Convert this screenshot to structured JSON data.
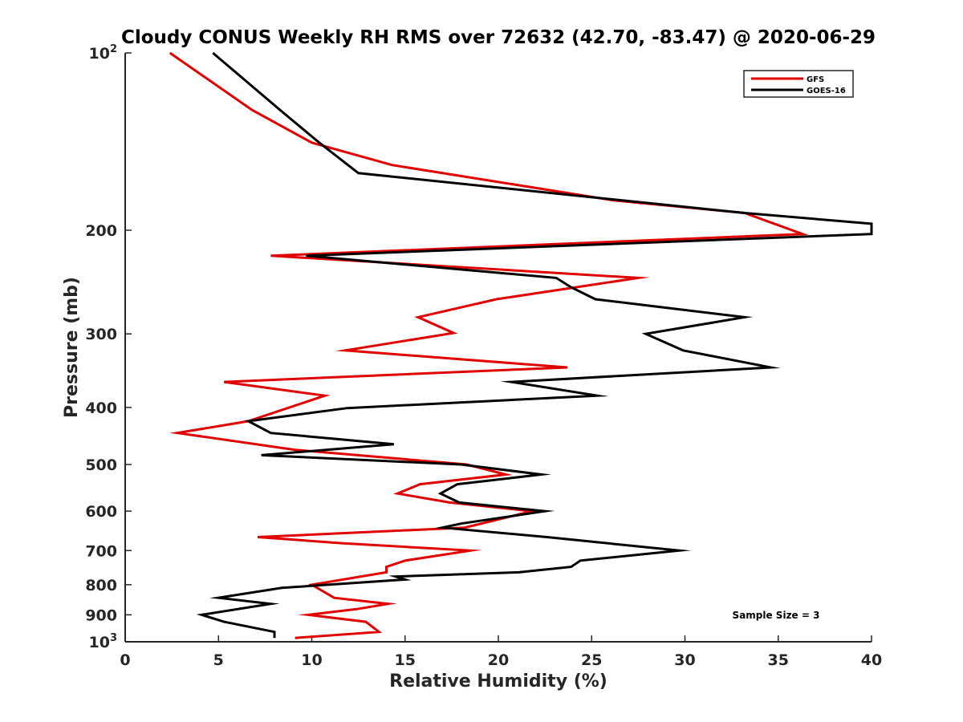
{
  "chart_data": {
    "type": "line",
    "title": "Cloudy CONUS Weekly RH RMS over 72632 (42.70, -83.47) @ 2020-06-29",
    "xlabel": "Relative Humidity (%)",
    "ylabel": "Pressure (mb)",
    "xlim": [
      0,
      40
    ],
    "ylim": [
      100,
      1000
    ],
    "yscale": "log",
    "y_reversed": true,
    "grid": false,
    "legend_position": "top-right",
    "x_ticks": [
      0,
      5,
      10,
      15,
      20,
      25,
      30,
      35,
      40
    ],
    "y_ticks": [
      {
        "value": 100,
        "label": "10",
        "sup": "2"
      },
      {
        "value": 200,
        "label": "200",
        "sup": ""
      },
      {
        "value": 300,
        "label": "300",
        "sup": ""
      },
      {
        "value": 400,
        "label": "400",
        "sup": ""
      },
      {
        "value": 500,
        "label": "500",
        "sup": ""
      },
      {
        "value": 600,
        "label": "600",
        "sup": ""
      },
      {
        "value": 700,
        "label": "700",
        "sup": ""
      },
      {
        "value": 800,
        "label": "800",
        "sup": ""
      },
      {
        "value": 900,
        "label": "900",
        "sup": ""
      },
      {
        "value": 1000,
        "label": "10",
        "sup": "3"
      }
    ],
    "series": [
      {
        "name": "GFS",
        "color": "#e00000",
        "points": [
          [
            2.4,
            100
          ],
          [
            6.8,
            125
          ],
          [
            10.0,
            142
          ],
          [
            14.3,
            155
          ],
          [
            26.2,
            178
          ],
          [
            33.2,
            187
          ],
          [
            36.3,
            203
          ],
          [
            7.8,
            221
          ],
          [
            27.5,
            241
          ],
          [
            19.9,
            262
          ],
          [
            15.7,
            281
          ],
          [
            17.6,
            299
          ],
          [
            11.8,
            320
          ],
          [
            23.7,
            342
          ],
          [
            5.3,
            362
          ],
          [
            10.7,
            382
          ],
          [
            6.6,
            422
          ],
          [
            2.8,
            442
          ],
          [
            9.1,
            472
          ],
          [
            18.3,
            500
          ],
          [
            20.4,
            520
          ],
          [
            15.8,
            540
          ],
          [
            14.6,
            560
          ],
          [
            17.4,
            580
          ],
          [
            21.8,
            600
          ],
          [
            18.2,
            640
          ],
          [
            7.1,
            664
          ],
          [
            11.6,
            680
          ],
          [
            18.5,
            700
          ],
          [
            15.0,
            728
          ],
          [
            14.0,
            746
          ],
          [
            14.0,
            762
          ],
          [
            10.0,
            800
          ],
          [
            11.2,
            842
          ],
          [
            14.1,
            862
          ],
          [
            12.4,
            880
          ],
          [
            9.8,
            900
          ],
          [
            12.9,
            925
          ],
          [
            13.6,
            962
          ],
          [
            9.1,
            985
          ]
        ]
      },
      {
        "name": "GOES-16",
        "color": "#000000",
        "points": [
          [
            4.7,
            100
          ],
          [
            8.3,
            125
          ],
          [
            10.4,
            142
          ],
          [
            12.5,
            160
          ],
          [
            33.2,
            187
          ],
          [
            40.0,
            195
          ],
          [
            40.0,
            203
          ],
          [
            9.7,
            221
          ],
          [
            23.1,
            241
          ],
          [
            23.9,
            250
          ],
          [
            25.2,
            262
          ],
          [
            33.2,
            281
          ],
          [
            27.9,
            300
          ],
          [
            29.9,
            320
          ],
          [
            34.6,
            342
          ],
          [
            20.7,
            362
          ],
          [
            25.3,
            382
          ],
          [
            11.9,
            401
          ],
          [
            6.6,
            422
          ],
          [
            7.8,
            442
          ],
          [
            14.4,
            462
          ],
          [
            7.3,
            482
          ],
          [
            18.0,
            500
          ],
          [
            22.3,
            520
          ],
          [
            17.8,
            540
          ],
          [
            16.9,
            560
          ],
          [
            17.9,
            580
          ],
          [
            22.5,
            600
          ],
          [
            18.0,
            630
          ],
          [
            17.0,
            640
          ],
          [
            22.6,
            664
          ],
          [
            29.7,
            700
          ],
          [
            24.4,
            728
          ],
          [
            23.9,
            746
          ],
          [
            21.1,
            762
          ],
          [
            14.5,
            775
          ],
          [
            15.0,
            784
          ],
          [
            8.4,
            810
          ],
          [
            5.0,
            842
          ],
          [
            7.8,
            862
          ],
          [
            4.1,
            900
          ],
          [
            5.3,
            925
          ],
          [
            8.0,
            962
          ],
          [
            8.0,
            985
          ]
        ]
      }
    ],
    "annotations": [
      "Sample Size = 3"
    ]
  }
}
